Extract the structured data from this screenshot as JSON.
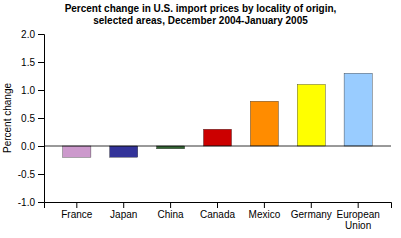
{
  "chart_data": {
    "type": "bar",
    "title": "Percent change in U.S. import prices by locality of origin,\nselected areas, December 2004-January 2005",
    "ylabel": "Percent change",
    "categories": [
      "France",
      "Japan",
      "China",
      "Canada",
      "Mexico",
      "Germany",
      "European\nUnion"
    ],
    "values": [
      -0.2,
      -0.2,
      -0.05,
      0.3,
      0.8,
      1.1,
      1.3
    ],
    "colors": [
      "#cc99cc",
      "#333399",
      "#336633",
      "#cc0000",
      "#ff8c00",
      "#ffff00",
      "#99ccff"
    ],
    "ylim": [
      -1.0,
      2.0
    ],
    "yticks": [
      {
        "value": -1.0,
        "label": "-1.0"
      },
      {
        "value": -0.5,
        "label": "-0.5"
      },
      {
        "value": 0.0,
        "label": "0.0"
      },
      {
        "value": 0.5,
        "label": "0.5"
      },
      {
        "value": 1.0,
        "label": "1.0"
      },
      {
        "value": 1.5,
        "label": "1.5"
      },
      {
        "value": 2.0,
        "label": "2.0"
      }
    ]
  }
}
